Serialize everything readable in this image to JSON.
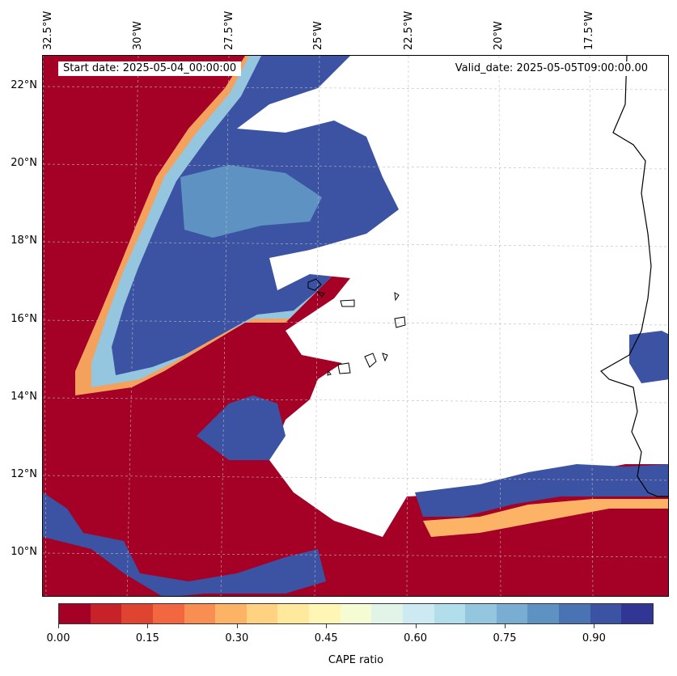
{
  "map": {
    "start_date": "Start date: 2025-05-04_00:00:00",
    "valid_date": "Valid_date: 2025-05-05T09:00:00.00",
    "lon_labels": [
      "32.5°W",
      "30°W",
      "27.5°W",
      "25°W",
      "22.5°W",
      "20°W",
      "17.5°W"
    ],
    "lat_labels": [
      "22°N",
      "20°N",
      "18°N",
      "16°N",
      "14°N",
      "12°N",
      "10°N"
    ],
    "field": "CAPE ratio",
    "extent": {
      "lon": [
        -33,
        -15
      ],
      "lat": [
        8.9,
        22.8
      ]
    },
    "colors": {
      "low": "#a50026",
      "high": "#313695",
      "coast": "#000000",
      "grid": "#bbbbbb"
    }
  },
  "colorbar": {
    "title": "CAPE ratio",
    "tick_labels": [
      "0.00",
      "0.15",
      "0.30",
      "0.45",
      "0.60",
      "0.75",
      "0.90"
    ],
    "tick_values": [
      0.0,
      0.15,
      0.3,
      0.45,
      0.6,
      0.75,
      0.9
    ],
    "range": [
      0,
      1
    ],
    "colors": [
      "#a50026",
      "#c7222a",
      "#df4431",
      "#f26640",
      "#f98e52",
      "#fdb365",
      "#fed281",
      "#fee99d",
      "#fff6b5",
      "#f5fbd2",
      "#e2f3e8",
      "#cde9f2",
      "#b2ddeb",
      "#95c6df",
      "#79aed2",
      "#5e92c3",
      "#4a73b3",
      "#3c52a3",
      "#313695"
    ]
  }
}
